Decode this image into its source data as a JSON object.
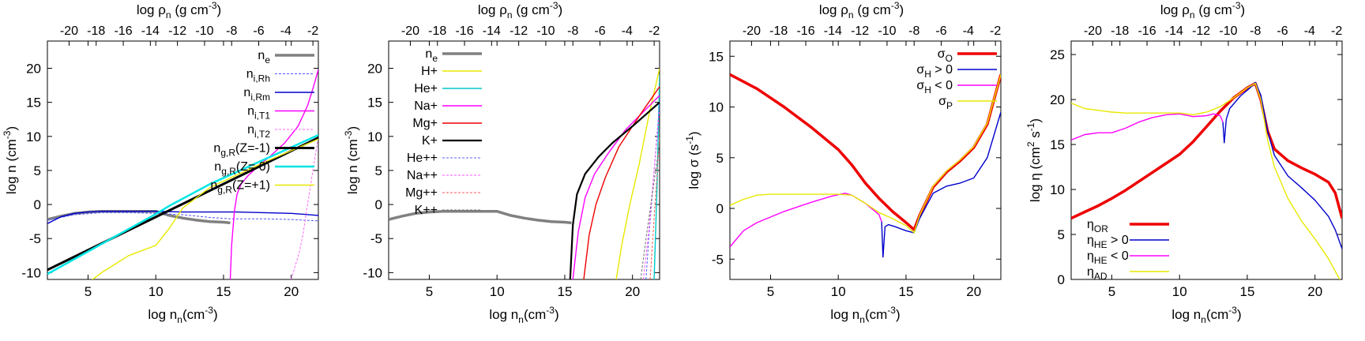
{
  "top_axis_ticks": [
    "-20",
    "-18",
    "-16",
    "-14",
    "-12",
    "-10",
    "-8",
    "-6",
    "-4",
    "-2"
  ],
  "top_axis_logrho": [
    -20,
    -18,
    -16,
    -14,
    -12,
    -10,
    -8,
    -6,
    -4,
    -2
  ],
  "top_axis_nn": [
    3.6,
    5.6,
    7.6,
    9.6,
    11.6,
    13.6,
    15.6,
    17.6,
    19.6,
    21.6
  ],
  "chart_data": [
    {
      "type": "line",
      "top_label": "log ρ",
      "top_label_sub": "n",
      "top_label_unit": " (g cm",
      "top_label_sup": "-3",
      "top_label_close": ")",
      "xlabel": "log n",
      "xlabel_sub": "n",
      "xlabel_unit": "(cm",
      "xlabel_sup": "-3",
      "xlabel_close": ")",
      "ylabel": "log n (cm",
      "ylabel_sup": "-3",
      "ylabel_close": ")",
      "xlim": [
        2,
        22
      ],
      "ylim": [
        -11,
        24
      ],
      "xticks": [
        5,
        10,
        15,
        20
      ],
      "yticks": [
        -10,
        -5,
        0,
        5,
        10,
        15,
        20
      ],
      "legend_position": "top-right",
      "series": [
        {
          "name": "n",
          "sub": "e",
          "color": "#808080",
          "width": 3.5,
          "dash": "",
          "x": [
            2,
            3,
            4,
            5,
            6,
            8,
            10,
            11,
            12,
            13,
            14,
            15,
            15.5
          ],
          "y": [
            -2.2,
            -1.7,
            -1.3,
            -1.1,
            -1.0,
            -1.0,
            -1.0,
            -1.6,
            -2.0,
            -2.3,
            -2.5,
            -2.6,
            -2.7
          ]
        },
        {
          "name": "n",
          "sub": "i,Rh",
          "color": "#5050ff",
          "width": 1,
          "dash": "3,2",
          "x": [
            2,
            4,
            6,
            8,
            10,
            12,
            14,
            15.5,
            18,
            20,
            22
          ],
          "y": [
            -2.3,
            -1.5,
            -1.2,
            -1.2,
            -1.3,
            -1.5,
            -1.9,
            -2.1,
            -2.1,
            -2.2,
            -2.4
          ]
        },
        {
          "name": "n",
          "sub": "i,Rm",
          "color": "#0000cc",
          "width": 1.4,
          "dash": "",
          "x": [
            2,
            3,
            4,
            5,
            6,
            8,
            10,
            12,
            14,
            16,
            18,
            20,
            22
          ],
          "y": [
            -2.8,
            -1.8,
            -1.3,
            -1.1,
            -1.0,
            -1.0,
            -1.0,
            -1.1,
            -1.1,
            -1.1,
            -1.2,
            -1.3,
            -1.6
          ]
        },
        {
          "name": "n",
          "sub": "i,T1",
          "color": "#ff00ff",
          "width": 1.4,
          "dash": "",
          "x": [
            15.5,
            15.6,
            15.8,
            16.0,
            16.3,
            16.8,
            17.5,
            18.5,
            19.5,
            20.5,
            21.2,
            21.6,
            22
          ],
          "y": [
            -11,
            -6,
            -1,
            1.5,
            3.0,
            4.2,
            5.5,
            7.2,
            9.0,
            11.5,
            14.5,
            17.0,
            19.8
          ]
        },
        {
          "name": "n",
          "sub": "i,T2",
          "color": "#ff66ff",
          "width": 1,
          "dash": "3,2",
          "x": [
            20.0,
            20.3,
            20.6,
            20.9,
            21.2,
            21.6,
            22
          ],
          "y": [
            -11,
            -9,
            -7,
            -4,
            0,
            5,
            10
          ]
        },
        {
          "name": "n",
          "sub": "g,R",
          "suffix": "(Z=-1)",
          "color": "#000000",
          "width": 3,
          "dash": "",
          "x": [
            2,
            22
          ],
          "y": [
            -9.6,
            9.8
          ]
        },
        {
          "name": "n",
          "sub": "g,R",
          "suffix": "(Z= 0)",
          "color": "#00e5e5",
          "width": 2.5,
          "dash": "",
          "x": [
            2,
            6,
            10,
            11,
            14,
            18,
            22
          ],
          "y": [
            -10.2,
            -5.8,
            -1.4,
            -0.2,
            3.0,
            6.6,
            10.2
          ]
        },
        {
          "name": "n",
          "sub": "g,R",
          "suffix": "(Z=+1)",
          "color": "#e8e800",
          "width": 1.4,
          "dash": "",
          "x": [
            2,
            4,
            6,
            8,
            10,
            11,
            12,
            14,
            18,
            22
          ],
          "y": [
            -16,
            -13,
            -10,
            -7.5,
            -6,
            -3.5,
            -0.5,
            2.5,
            6.2,
            9.6
          ]
        }
      ]
    },
    {
      "type": "line",
      "top_label": "log ρ",
      "top_label_sub": "n",
      "top_label_unit": " (g cm",
      "top_label_sup": "-3",
      "top_label_close": ")",
      "xlabel": "log n",
      "xlabel_sub": "n",
      "xlabel_unit": "(cm",
      "xlabel_sup": "-3",
      "xlabel_close": ")",
      "ylabel": "log n (cm",
      "ylabel_sup": "-3",
      "ylabel_close": ")",
      "xlim": [
        2,
        22
      ],
      "ylim": [
        -11,
        24
      ],
      "xticks": [
        5,
        10,
        15,
        20
      ],
      "yticks": [
        -10,
        -5,
        0,
        5,
        10,
        15,
        20
      ],
      "legend_position": "top-left",
      "series": [
        {
          "name": "n",
          "sub": "e",
          "color": "#808080",
          "width": 3.5,
          "dash": "",
          "x": [
            2,
            3,
            4,
            5,
            6,
            8,
            10,
            11,
            12,
            13,
            14,
            15,
            15.5
          ],
          "y": [
            -2.2,
            -1.7,
            -1.3,
            -1.1,
            -1.0,
            -1.0,
            -1.0,
            -1.6,
            -2.0,
            -2.3,
            -2.5,
            -2.6,
            -2.7
          ]
        },
        {
          "name": "H+",
          "color": "#e8e800",
          "width": 1.4,
          "dash": "",
          "x": [
            18.8,
            19.2,
            19.8,
            20.5,
            21.2,
            22
          ],
          "y": [
            -11,
            -6,
            0,
            6,
            13,
            20
          ]
        },
        {
          "name": "He+",
          "color": "#00c8c8",
          "width": 1.4,
          "dash": "",
          "x": [
            21.6,
            21.8,
            22
          ],
          "y": [
            -11,
            2,
            19
          ]
        },
        {
          "name": "Na+",
          "color": "#ff00ff",
          "width": 1.4,
          "dash": "",
          "x": [
            15.6,
            16.0,
            16.5,
            17.2,
            18.2,
            19.5,
            21,
            22
          ],
          "y": [
            -11,
            -4,
            1,
            4.5,
            7.5,
            11,
            14,
            16
          ]
        },
        {
          "name": "Mg+",
          "color": "#ee0000",
          "width": 1.4,
          "dash": "",
          "x": [
            16.4,
            16.8,
            17.3,
            18.0,
            19.0,
            20.5,
            22
          ],
          "y": [
            -11,
            -4.5,
            0,
            4,
            8.5,
            13,
            17.3
          ]
        },
        {
          "name": "K+",
          "color": "#000000",
          "width": 2.2,
          "dash": "",
          "x": [
            15.4,
            15.6,
            15.9,
            16.5,
            17.5,
            18.5,
            20,
            22
          ],
          "y": [
            -11,
            -3,
            1.5,
            4.5,
            7,
            9.0,
            11.5,
            15
          ]
        },
        {
          "name": "He++",
          "color": "#6060ff",
          "width": 1,
          "dash": "3,2",
          "x": [
            21.0,
            21.2,
            21.6,
            22
          ],
          "y": [
            -11,
            -5,
            5,
            15
          ]
        },
        {
          "name": "Na++",
          "color": "#ff55ff",
          "width": 1,
          "dash": "3,2",
          "x": [
            20.8,
            21.2,
            21.6,
            22
          ],
          "y": [
            -11,
            -4,
            5,
            14
          ]
        },
        {
          "name": "Mg++",
          "color": "#ff5555",
          "width": 1,
          "dash": "3,2",
          "x": [
            21.3,
            21.6,
            22
          ],
          "y": [
            -11,
            -2,
            10
          ]
        },
        {
          "name": "K++",
          "color": "#707070",
          "width": 1,
          "dash": "3,2",
          "x": [
            20.6,
            21.0,
            21.5,
            22
          ],
          "y": [
            -11,
            -5,
            2,
            9
          ]
        }
      ]
    },
    {
      "type": "line",
      "top_label": "log ρ",
      "top_label_sub": "n",
      "top_label_unit": " (g cm",
      "top_label_sup": "-3",
      "top_label_close": ")",
      "xlabel": "log n",
      "xlabel_sub": "n",
      "xlabel_unit": "(cm",
      "xlabel_sup": "-3",
      "xlabel_close": ")",
      "ylabel": "log σ (s",
      "ylabel_sup": "-1",
      "ylabel_close": ")",
      "xlim": [
        2,
        22
      ],
      "ylim": [
        -7,
        16.5
      ],
      "xticks": [
        5,
        10,
        15,
        20
      ],
      "yticks": [
        -5,
        0,
        5,
        10,
        15
      ],
      "legend_position": "top-right",
      "series": [
        {
          "name": "σ",
          "sub": "O",
          "color": "#ee0000",
          "width": 3.5,
          "dash": "",
          "x": [
            2,
            4,
            6,
            8,
            10,
            11,
            12,
            13,
            14,
            15,
            15.6,
            16,
            17,
            18,
            19,
            20,
            21,
            22
          ],
          "y": [
            13.2,
            11.8,
            10.0,
            8.0,
            5.8,
            4.3,
            2.5,
            1.0,
            -0.3,
            -1.4,
            -2.1,
            -0.7,
            2.1,
            3.6,
            4.7,
            6.0,
            8.3,
            13.2
          ]
        },
        {
          "name": "σ",
          "sub": "H",
          "suffix": " > 0",
          "color": "#0000cc",
          "width": 1.4,
          "dash": "",
          "x": [
            13.2,
            13.3,
            13.45,
            13.7,
            14.2,
            15.0,
            15.6,
            16.0,
            17.0,
            18.0,
            19.0,
            20.0,
            21.0,
            22.0
          ],
          "y": [
            -1.3,
            -4.8,
            -1.8,
            -1.6,
            -1.8,
            -2.2,
            -2.4,
            -1.0,
            1.5,
            2.2,
            2.5,
            3.0,
            5.0,
            9.5
          ]
        },
        {
          "name": "σ",
          "sub": "H",
          "suffix": " < 0",
          "color": "#ff00ff",
          "width": 1.4,
          "dash": "",
          "x": [
            2,
            3,
            4,
            6,
            8,
            9.5,
            10.5,
            11,
            12,
            13,
            13.2
          ],
          "y": [
            -3.8,
            -2.2,
            -1.4,
            -0.3,
            0.6,
            1.2,
            1.5,
            1.3,
            0.5,
            -0.6,
            -1.3
          ]
        },
        {
          "name": "σ",
          "sub": "P",
          "color": "#e8e800",
          "width": 1.4,
          "dash": "",
          "x": [
            2,
            3,
            4,
            5,
            6,
            8,
            10,
            11,
            12,
            13,
            14,
            15,
            15.6,
            16,
            17,
            18,
            19,
            20,
            21,
            22
          ],
          "y": [
            0.3,
            0.9,
            1.3,
            1.4,
            1.4,
            1.4,
            1.4,
            1.3,
            0.5,
            -0.4,
            -1.0,
            -1.7,
            -2.4,
            -0.7,
            2.2,
            3.7,
            4.8,
            6.1,
            8.4,
            13.2
          ]
        }
      ]
    },
    {
      "type": "line",
      "top_label": "log ρ",
      "top_label_sub": "n",
      "top_label_unit": " (g cm",
      "top_label_sup": "-3",
      "top_label_close": ")",
      "xlabel": "log n",
      "xlabel_sub": "n",
      "xlabel_unit": "(cm",
      "xlabel_sup": "-3",
      "xlabel_close": ")",
      "ylabel": "log η (cm",
      "ylabel_sup": "2",
      "ylabel_mid": " s",
      "ylabel_sup2": "-1",
      "ylabel_close": ")",
      "xlim": [
        2,
        22
      ],
      "ylim": [
        0,
        26.5
      ],
      "xticks": [
        5,
        10,
        15,
        20
      ],
      "yticks": [
        0,
        5,
        10,
        15,
        20,
        25
      ],
      "legend_position": "bottom-right",
      "series": [
        {
          "name": "η",
          "sub": "OR",
          "color": "#ee0000",
          "width": 3.5,
          "dash": "",
          "x": [
            2,
            3,
            4,
            5,
            6,
            7,
            8,
            9,
            10,
            11,
            12,
            13,
            14,
            15,
            15.6,
            16,
            16.5,
            17,
            18,
            19,
            20,
            21,
            21.5,
            22
          ],
          "y": [
            6.8,
            7.5,
            8.2,
            9.0,
            9.9,
            10.9,
            11.9,
            12.9,
            13.9,
            15.3,
            17.0,
            18.7,
            20.2,
            21.3,
            21.8,
            20.0,
            16.5,
            14.5,
            13.2,
            12.4,
            11.7,
            10.8,
            9.6,
            6.8
          ]
        },
        {
          "name": "η",
          "sub": "HE",
          "suffix": " > 0",
          "color": "#0000cc",
          "width": 1.4,
          "dash": "",
          "x": [
            13.2,
            13.3,
            13.45,
            13.7,
            14.5,
            15.2,
            15.6,
            16.0,
            16.5,
            17.0,
            18.0,
            19.0,
            20.0,
            21.0,
            21.5,
            22
          ],
          "y": [
            17.5,
            15.2,
            17.8,
            19.0,
            20.4,
            21.3,
            21.9,
            20.5,
            16.5,
            13.8,
            11.5,
            10.2,
            8.8,
            7.0,
            5.5,
            3.4
          ]
        },
        {
          "name": "η",
          "sub": "HE",
          "suffix": " < 0",
          "color": "#ff00ff",
          "width": 1.4,
          "dash": "",
          "x": [
            2,
            3,
            4,
            5,
            6,
            7,
            8,
            9,
            10,
            11,
            12,
            12.5,
            13,
            13.2
          ],
          "y": [
            15.5,
            16.1,
            16.3,
            16.3,
            16.8,
            17.5,
            18.0,
            18.3,
            18.4,
            18.1,
            18.2,
            18.4,
            18.2,
            17.5
          ]
        },
        {
          "name": "η",
          "sub": "AD",
          "color": "#e8e800",
          "width": 1.4,
          "dash": "",
          "x": [
            2,
            3,
            4,
            5,
            6,
            8,
            10,
            11,
            12,
            13,
            14,
            15,
            15.6,
            16,
            16.5,
            17,
            18,
            19,
            20,
            21,
            22
          ],
          "y": [
            19.6,
            19.0,
            18.8,
            18.6,
            18.5,
            18.5,
            18.5,
            18.3,
            18.6,
            19.2,
            20.2,
            21.3,
            21.8,
            20.0,
            15.5,
            12.5,
            9.0,
            6.5,
            4.5,
            2.3,
            -0.5
          ]
        }
      ]
    }
  ]
}
